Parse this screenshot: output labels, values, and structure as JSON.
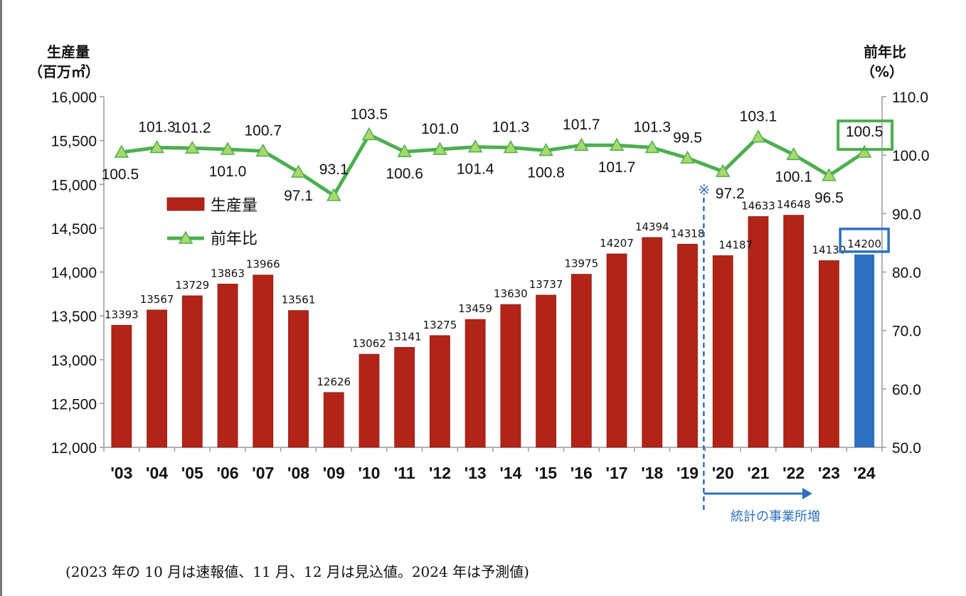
{
  "chart_data": {
    "type": "bar",
    "y_left_label": [
      "生産量",
      "（百万㎡）"
    ],
    "y_right_label": [
      "前年比",
      "（%）"
    ],
    "ylim_left": [
      12000,
      16000
    ],
    "yticks_left": [
      "12,000",
      "12,500",
      "13,000",
      "13,500",
      "14,000",
      "14,500",
      "15,000",
      "15,500",
      "16,000"
    ],
    "ylim_right": [
      50,
      110
    ],
    "yticks_right": [
      "50.0",
      "60.0",
      "70.0",
      "80.0",
      "90.0",
      "100.0",
      "110.0"
    ],
    "categories": [
      "'03",
      "'04",
      "'05",
      "'06",
      "'07",
      "'08",
      "'09",
      "'10",
      "'11",
      "'12",
      "'13",
      "'14",
      "'15",
      "'16",
      "'17",
      "'18",
      "'19",
      "'20",
      "'21",
      "'22",
      "'23",
      "'24"
    ],
    "series": [
      {
        "name": "生産量",
        "type": "bar",
        "axis": "left",
        "values": [
          13393,
          13567,
          13729,
          13863,
          13966,
          13561,
          12626,
          13062,
          13141,
          13275,
          13459,
          13630,
          13737,
          13975,
          14207,
          14394,
          14318,
          14187,
          14633,
          14648,
          14130,
          14200
        ],
        "color": "#B22418",
        "forecast_color": "#2E6FBF"
      },
      {
        "name": "前年比",
        "type": "line",
        "axis": "right",
        "values": [
          100.5,
          101.3,
          101.2,
          101.0,
          100.7,
          97.1,
          93.1,
          103.5,
          100.6,
          101.0,
          101.4,
          101.3,
          100.8,
          101.7,
          101.7,
          101.3,
          99.5,
          97.2,
          103.1,
          100.1,
          96.5,
          100.5
        ],
        "color": "#4CAF50",
        "marker_color": "#A9D96A"
      }
    ],
    "annotations": {
      "divider_mark": "※",
      "divider_caption": "統計の事業所増"
    }
  },
  "footnote": "(2023 年の 10 月は速報値、11 月、12 月は見込値。2024 年は予測値)"
}
